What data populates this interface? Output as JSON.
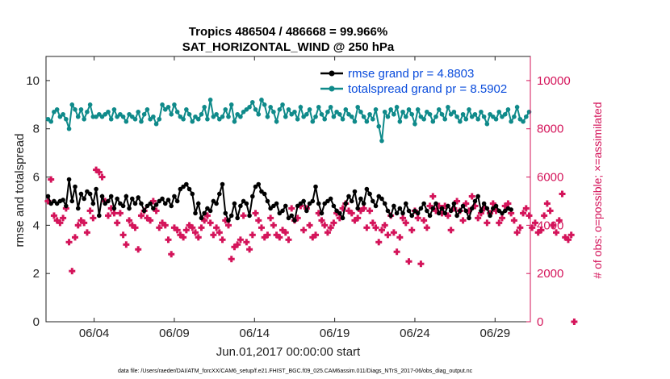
{
  "chart_data": {
    "type": "line",
    "title": "Tropics 486504 / 486668 = 99.966%",
    "subtitle": "SAT_HORIZONTAL_WIND @ 250 hPa",
    "xlabel": "Jun.01,2017 00:00:00 start",
    "ylabel": "rmse and totalspread",
    "y2label": "# of obs: o=possible; ×=assimilated",
    "xlim": [
      1,
      31.2
    ],
    "ylim": [
      0,
      11
    ],
    "y2lim": [
      0,
      11000
    ],
    "xticks": [
      4,
      9,
      14,
      19,
      24,
      29
    ],
    "xtick_labels": [
      "06/04",
      "06/09",
      "06/14",
      "06/19",
      "06/24",
      "06/29"
    ],
    "yticks": [
      0,
      2,
      4,
      6,
      8,
      10
    ],
    "y2ticks": [
      0,
      2000,
      4000,
      6000,
      8000,
      10000
    ],
    "legend_position": "top-right",
    "series": [
      {
        "name": "rmse grand pr = 4.8803",
        "color": "#000000",
        "marker": "circle",
        "values": [
          5.2,
          4.9,
          5.0,
          4.9,
          5.0,
          5.05,
          4.8,
          5.9,
          5.0,
          5.6,
          4.7,
          5.3,
          5.1,
          5.4,
          5.3,
          4.9,
          5.5,
          4.4,
          5.2,
          4.9,
          5.0,
          5.2,
          4.7,
          5.1,
          4.9,
          4.8,
          5.2,
          4.7,
          5.1,
          4.9,
          5.15,
          4.9,
          4.6,
          4.8,
          4.9,
          4.7,
          4.85,
          5.0,
          5.1,
          4.9,
          5.05,
          4.8,
          5.2,
          5.0,
          5.5,
          5.6,
          5.7,
          5.5,
          5.3,
          4.5,
          4.9,
          4.3,
          4.5,
          4.7,
          4.6,
          5.0,
          4.9,
          5.3,
          5.7,
          4.5,
          4.2,
          4.4,
          4.9,
          4.3,
          4.8,
          5.0,
          4.9,
          4.4,
          5.2,
          5.6,
          5.7,
          5.4,
          5.3,
          5.0,
          4.7,
          4.8,
          4.9,
          4.5,
          4.6,
          4.8,
          4.3,
          4.4,
          4.2,
          4.8,
          4.9,
          5.0,
          4.6,
          4.9,
          5.0,
          5.6,
          4.9,
          4.5,
          4.9,
          5.0,
          5.1,
          4.8,
          4.6,
          4.5,
          4.3,
          4.9,
          5.2,
          5.0,
          5.4,
          4.7,
          5.1,
          4.9,
          5.5,
          5.3,
          5.0,
          4.8,
          5.2,
          5.1,
          4.9,
          4.6,
          4.4,
          4.8,
          4.5,
          4.7,
          4.5,
          4.9,
          4.6,
          4.4,
          4.6,
          4.5,
          4.7,
          4.9,
          4.6,
          4.4,
          4.7,
          4.9,
          4.5,
          4.7,
          4.5,
          4.8,
          4.6,
          4.9,
          4.4,
          4.6,
          4.8,
          4.6,
          4.3,
          4.7,
          5.0,
          5.2,
          4.6,
          4.9,
          4.7,
          4.4,
          4.7,
          4.8,
          4.6,
          4.5,
          4.6,
          4.7,
          4.65
        ]
      },
      {
        "name": "totalspread grand pr = 8.5902",
        "color": "#0f8a8a",
        "marker": "circle",
        "values": [
          8.4,
          8.3,
          8.7,
          8.8,
          8.5,
          8.6,
          8.4,
          8.0,
          9.0,
          8.8,
          8.5,
          8.8,
          8.4,
          8.7,
          9.0,
          8.5,
          8.5,
          8.6,
          8.5,
          8.6,
          8.7,
          8.4,
          8.8,
          8.5,
          8.6,
          8.5,
          8.3,
          8.6,
          8.5,
          8.4,
          8.7,
          8.3,
          8.6,
          8.8,
          8.4,
          8.5,
          8.2,
          8.4,
          9.0,
          8.8,
          8.9,
          8.6,
          9.0,
          8.7,
          8.5,
          8.4,
          8.8,
          8.6,
          8.3,
          8.5,
          8.4,
          8.6,
          8.9,
          8.4,
          9.2,
          8.5,
          8.6,
          8.4,
          8.5,
          8.8,
          8.5,
          9.0,
          8.3,
          8.6,
          8.5,
          8.7,
          8.8,
          8.9,
          9.1,
          8.8,
          8.6,
          9.2,
          9.0,
          8.5,
          8.9,
          8.7,
          8.3,
          8.8,
          9.0,
          8.5,
          8.8,
          8.6,
          8.7,
          8.4,
          8.9,
          8.5,
          8.6,
          8.8,
          8.3,
          8.5,
          8.9,
          8.6,
          8.4,
          8.7,
          8.9,
          8.5,
          8.7,
          8.6,
          8.4,
          8.8,
          8.6,
          8.5,
          8.3,
          8.9,
          8.7,
          8.5,
          8.3,
          8.6,
          8.4,
          8.8,
          8.1,
          7.5,
          8.7,
          8.5,
          8.8,
          8.6,
          8.9,
          8.3,
          8.7,
          8.5,
          8.8,
          8.6,
          8.2,
          8.8,
          8.5,
          8.4,
          8.7,
          8.6,
          8.3,
          8.5,
          8.8,
          8.6,
          8.4,
          8.9,
          8.6,
          8.7,
          8.5,
          8.3,
          8.6,
          8.4,
          8.8,
          8.5,
          8.6,
          8.4,
          8.7,
          8.5,
          8.2,
          8.6,
          8.5,
          8.4,
          8.7,
          8.5,
          8.6,
          8.8,
          8.3,
          8.5,
          8.9,
          8.4,
          8.3,
          8.5,
          8.7
        ]
      },
      {
        "name": "# of obs assimilated",
        "color": "#d4145a",
        "marker": "plus",
        "axis": "right",
        "values": [
          5000,
          5900,
          4400,
          4200,
          4100,
          4300,
          4700,
          3300,
          2100,
          3500,
          4000,
          4200,
          4100,
          3700,
          4600,
          4300,
          6300,
          6200,
          6000,
          5000,
          4400,
          4700,
          4500,
          4100,
          4500,
          3600,
          3200,
          4200,
          4000,
          3900,
          3000,
          4400,
          4600,
          4300,
          4200,
          5000,
          4600,
          3900,
          4100,
          4000,
          3400,
          2800,
          3900,
          3800,
          3600,
          3500,
          3800,
          4000,
          3900,
          3700,
          3500,
          3900,
          4200,
          4400,
          4100,
          3600,
          3900,
          3700,
          3400,
          4200,
          4000,
          2600,
          3100,
          3200,
          3400,
          4400,
          3300,
          3000,
          3600,
          4500,
          4200,
          3900,
          3500,
          3600,
          4300,
          4000,
          3600,
          3500,
          3800,
          3700,
          3400,
          4700,
          4200,
          4300,
          4800,
          3800,
          4700,
          4000,
          3500,
          3600,
          4500,
          4200,
          4000,
          3700,
          3900,
          4100,
          4500,
          4300,
          4700,
          4900,
          4600,
          4500,
          4200,
          4300,
          4600,
          4700,
          3900,
          4600,
          4100,
          3900,
          3300,
          3800,
          4000,
          3600,
          4400,
          3700,
          2900,
          3500,
          4300,
          4100,
          2500,
          3800,
          4600,
          4300,
          2400,
          4200,
          3900,
          4800,
          5200,
          4600,
          4800,
          4500,
          4800,
          4400,
          3800,
          4700,
          5000,
          4600,
          4200,
          4900,
          4600,
          5200,
          4800,
          4300,
          4500,
          4700,
          4100,
          4500,
          4900,
          4600,
          4100,
          4300,
          4800,
          4900,
          4500,
          4200,
          3700,
          3900,
          4500,
          4700,
          4400,
          3900,
          4100,
          3700,
          3800,
          4400,
          4900,
          4600,
          4000,
          3700,
          4200,
          5300,
          3500,
          3400,
          3600,
          0
        ]
      }
    ]
  },
  "footer": "data file: /Users/raeder/DAI/ATM_forcXX/CAM6_setup/f.e21.FHIST_BGC.f09_025.CAM6assim.011/Diags_NTrS_2017-06/obs_diag_output.nc"
}
